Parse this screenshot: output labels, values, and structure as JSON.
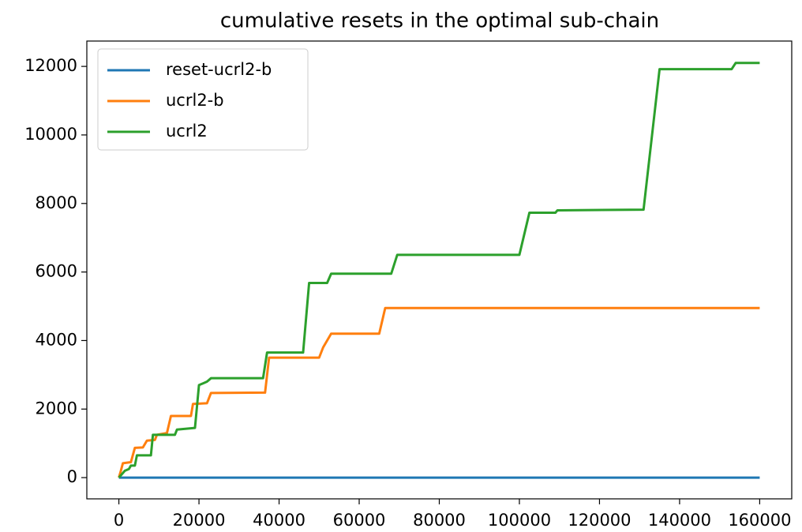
{
  "chart_data": {
    "type": "line",
    "title": "cumulative resets in the optimal sub-chain",
    "xlim": [
      -8000,
      168000
    ],
    "xticks": [
      0,
      20000,
      40000,
      60000,
      80000,
      100000,
      120000,
      140000,
      160000
    ],
    "ylim": [
      -620,
      12740
    ],
    "yticks": [
      0,
      2000,
      4000,
      6000,
      8000,
      10000,
      12000
    ],
    "legend": "upper left",
    "grid": false,
    "series": [
      {
        "name": "reset-ucrl2-b",
        "color": "#1f77b4",
        "x": [
          0,
          160000
        ],
        "values": [
          0,
          0
        ]
      },
      {
        "name": "ucrl2-b",
        "color": "#ff7f0e",
        "x": [
          0,
          500,
          1000,
          3000,
          4000,
          6000,
          7000,
          9000,
          9500,
          12000,
          13000,
          18000,
          18500,
          22000,
          23000,
          36500,
          37500,
          50000,
          51000,
          53000,
          65000,
          66500,
          160000
        ],
        "values": [
          0,
          200,
          420,
          450,
          870,
          880,
          1080,
          1100,
          1250,
          1300,
          1800,
          1800,
          2150,
          2170,
          2470,
          2480,
          3500,
          3500,
          3800,
          4200,
          4200,
          4950,
          4950
        ]
      },
      {
        "name": "ucrl2",
        "color": "#2ca02c",
        "x": [
          0,
          1500,
          2500,
          3000,
          4000,
          4500,
          8000,
          8500,
          14000,
          14500,
          19000,
          20000,
          21000,
          22000,
          23000,
          36000,
          37000,
          46000,
          47500,
          52000,
          53000,
          68000,
          69500,
          100000,
          102500,
          109000,
          109500,
          131000,
          135000,
          153000,
          154000,
          160000
        ],
        "values": [
          0,
          200,
          250,
          350,
          350,
          650,
          650,
          1250,
          1250,
          1400,
          1450,
          2700,
          2750,
          2800,
          2900,
          2900,
          3650,
          3650,
          5680,
          5680,
          5950,
          5950,
          6500,
          6500,
          7730,
          7730,
          7800,
          7820,
          11920,
          11920,
          12100,
          12100
        ]
      }
    ]
  }
}
